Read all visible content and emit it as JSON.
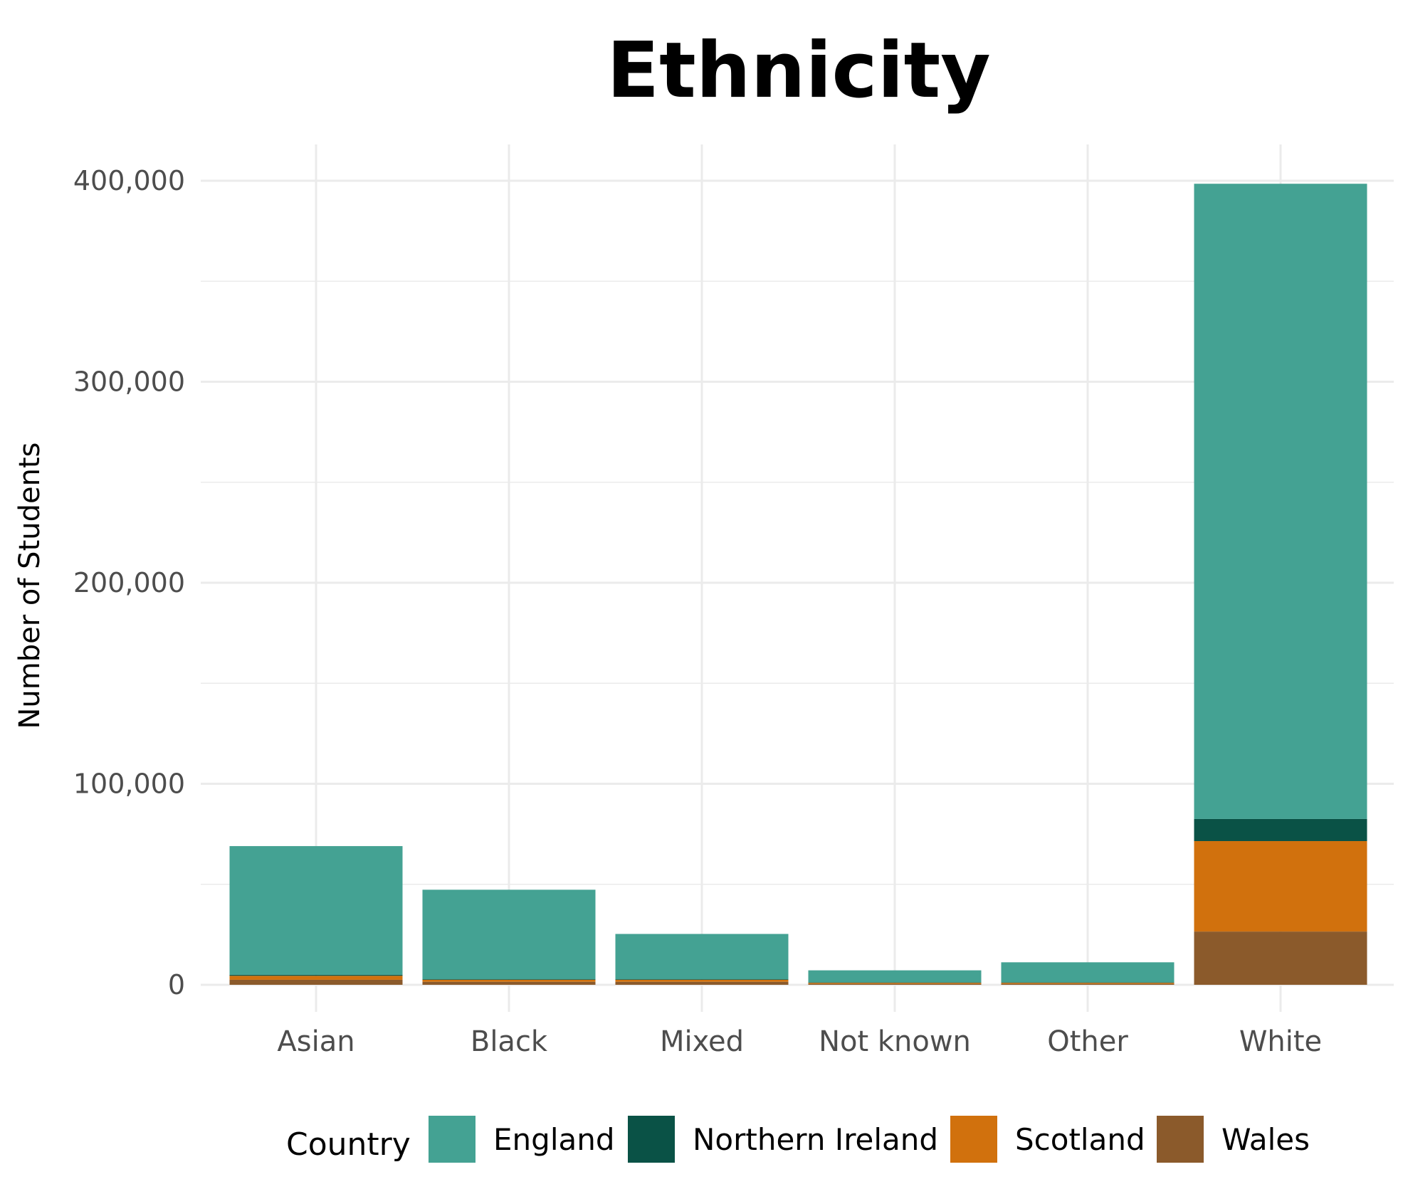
{
  "chart_data": {
    "type": "bar",
    "stacked": true,
    "title": "Ethnicity",
    "xlabel": "",
    "ylabel": "Number of Students",
    "categories": [
      "Asian",
      "Black",
      "Mixed",
      "Not known",
      "Other",
      "White"
    ],
    "series": [
      {
        "name": "England",
        "color": "#44a293",
        "values": [
          64000,
          44500,
          22500,
          6000,
          10000,
          316000
        ]
      },
      {
        "name": "Northern Ireland",
        "color": "#0a5246",
        "values": [
          500,
          300,
          300,
          200,
          200,
          11000
        ]
      },
      {
        "name": "Scotland",
        "color": "#d1710d",
        "values": [
          2000,
          1000,
          1000,
          500,
          500,
          45000
        ]
      },
      {
        "name": "Wales",
        "color": "#8b5a2b",
        "values": [
          2500,
          1500,
          1500,
          500,
          500,
          26500
        ]
      }
    ],
    "stack_order_bottom_to_top": [
      "Wales",
      "Scotland",
      "Northern Ireland",
      "England"
    ],
    "ylim": [
      0,
      400000
    ],
    "yticks": [
      0,
      100000,
      200000,
      300000,
      400000
    ],
    "ytick_labels": [
      "0",
      "100,000",
      "200,000",
      "300,000",
      "400,000"
    ],
    "grid": true,
    "legend": {
      "title": "Country",
      "position": "bottom"
    }
  }
}
